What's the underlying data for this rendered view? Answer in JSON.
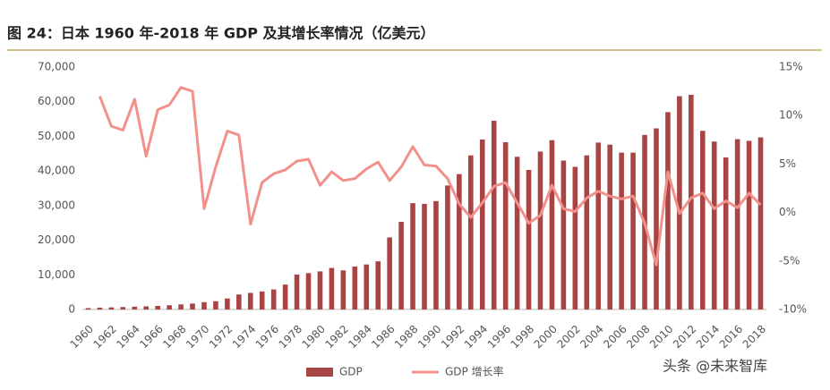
{
  "chart_data": {
    "type": "combo",
    "title": "图 24：日本 1960 年-2018 年 GDP 及其增长率情况（亿美元）",
    "watermark": "头条 @未来智库",
    "categories": [
      "1960",
      null,
      "1962",
      null,
      "1964",
      null,
      "1966",
      null,
      "1968",
      null,
      "1970",
      null,
      "1972",
      null,
      "1974",
      null,
      "1976",
      null,
      "1978",
      null,
      "1980",
      null,
      "1982",
      null,
      "1984",
      null,
      "1986",
      null,
      "1988",
      null,
      "1990",
      null,
      "1992",
      null,
      "1994",
      null,
      "1996",
      null,
      "1998",
      null,
      "2000",
      null,
      "2002",
      null,
      "2004",
      null,
      "2006",
      null,
      "2008",
      null,
      "2010",
      null,
      "2012",
      null,
      "2014",
      null,
      "2016",
      null,
      "2018"
    ],
    "series": [
      {
        "name": "GDP",
        "type": "bar",
        "color": "#a84444",
        "values": [
          400,
          540,
          610,
          710,
          820,
          910,
          1050,
          1230,
          1470,
          1720,
          2120,
          2400,
          3180,
          4320,
          4800,
          5200,
          5800,
          7200,
          10100,
          10500,
          11000,
          12000,
          11300,
          12400,
          13000,
          13900,
          20800,
          25300,
          30700,
          30500,
          31300,
          35800,
          39100,
          44500,
          49100,
          54500,
          48300,
          44100,
          40300,
          45600,
          48900,
          43000,
          41200,
          44500,
          48200,
          47600,
          45300,
          45300,
          50400,
          52300,
          57000,
          61600,
          62000,
          51600,
          48500,
          43900,
          49200,
          48700,
          49700
        ]
      },
      {
        "name": "GDP 增长率",
        "type": "line",
        "axis": "y2",
        "color": "#f2918b",
        "values": [
          null,
          12.0,
          8.9,
          8.5,
          11.7,
          5.8,
          10.6,
          11.1,
          12.9,
          12.5,
          0.4,
          4.7,
          8.4,
          8.0,
          -1.2,
          3.1,
          4.0,
          4.4,
          5.3,
          5.5,
          2.8,
          4.2,
          3.3,
          3.5,
          4.5,
          5.2,
          3.3,
          4.7,
          6.8,
          4.9,
          4.8,
          3.5,
          0.9,
          -0.5,
          1.0,
          2.7,
          3.1,
          1.0,
          -1.1,
          -0.3,
          2.8,
          0.4,
          0.1,
          1.5,
          2.2,
          1.7,
          1.4,
          1.7,
          -1.1,
          -5.4,
          4.2,
          -0.1,
          1.5,
          2.0,
          0.4,
          1.2,
          0.5,
          2.0,
          0.8
        ]
      }
    ],
    "ylim": [
      0,
      70000
    ],
    "yticks": [
      0,
      {
        "value": 10000,
        "label": "10,000"
      },
      {
        "value": 20000,
        "label": "20,000"
      },
      {
        "value": 30000,
        "label": "30,000"
      },
      {
        "value": 40000,
        "label": "40,000"
      },
      {
        "value": 50000,
        "label": "50,000"
      },
      {
        "value": 60000,
        "label": "60,000"
      },
      {
        "value": 70000,
        "label": "70,000"
      }
    ],
    "y2lim": [
      -10,
      15
    ],
    "y2ticks": [
      {
        "value": -10,
        "label": "-10%"
      },
      {
        "value": -5,
        "label": "-5%"
      },
      {
        "value": 0,
        "label": "0%"
      },
      {
        "value": 5,
        "label": "5%"
      },
      {
        "value": 10,
        "label": "10%"
      },
      {
        "value": 15,
        "label": "15%"
      }
    ]
  }
}
